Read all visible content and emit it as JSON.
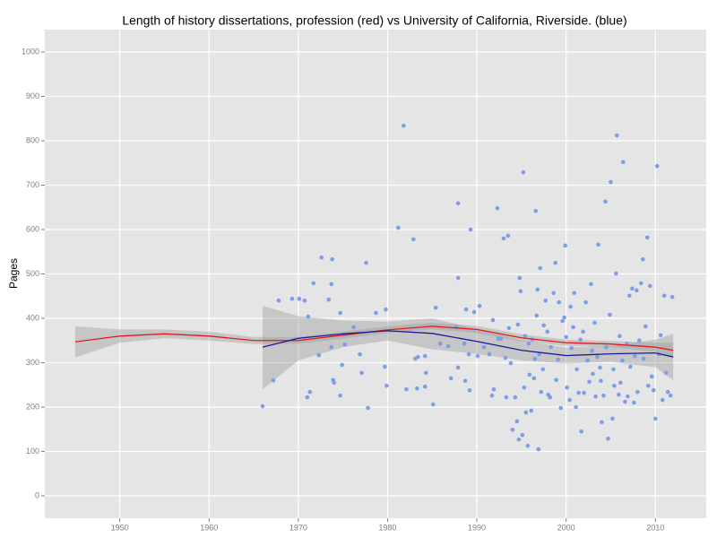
{
  "chart_data": {
    "type": "scatter",
    "title": "Length of history dissertations, profession (red) vs University of California, Riverside. (blue)",
    "ylabel": "Pages",
    "xlim": [
      1941.6,
      2015.7
    ],
    "ylim": [
      -50.5,
      1050.5
    ],
    "xticks": [
      1950,
      1960,
      1970,
      1980,
      1990,
      2000,
      2010
    ],
    "yticks": [
      0,
      100,
      200,
      300,
      400,
      500,
      600,
      700,
      800,
      900,
      1000
    ],
    "grid": true,
    "points": {
      "color": "#7c9ee6",
      "x": [
        1966.0,
        1967.2,
        1967.8,
        1969.3,
        1970.1,
        1970.7,
        1971.0,
        1971.3,
        1971.1,
        1971.7,
        1972.3,
        1972.6,
        1973.4,
        1973.8,
        1973.7,
        1973.9,
        1974.0,
        1973.7,
        1974.7,
        1974.7,
        1974.9,
        1975.2,
        1976.2,
        1976.9,
        1977.1,
        1977.6,
        1977.8,
        1978.7,
        1979.7,
        1979.8,
        1979.9,
        1981.2,
        1981.8,
        1982.1,
        1982.9,
        1983.1,
        1983.4,
        1983.3,
        1984.2,
        1984.2,
        1984.3,
        1985.1,
        1985.4,
        1985.9,
        1986.8,
        1987.1,
        1987.7,
        1987.9,
        1987.9,
        1987.9,
        1988.6,
        1988.7,
        1988.8,
        1989.1,
        1989.3,
        1989.2,
        1989.7,
        1990.1,
        1990.3,
        1990.8,
        1991.4,
        1991.7,
        1991.8,
        1991.9,
        1992.3,
        1992.4,
        1992.7,
        1993.0,
        1993.2,
        1993.5,
        1993.6,
        1993.3,
        1993.8,
        1994.0,
        1994.3,
        1994.5,
        1994.6,
        1994.7,
        1994.8,
        1994.9,
        1995.1,
        1995.2,
        1995.3,
        1995.4,
        1995.5,
        1995.7,
        1995.8,
        1995.9,
        1996.1,
        1996.2,
        1996.4,
        1996.5,
        1996.6,
        1996.7,
        1996.8,
        1996.9,
        1997.0,
        1997.1,
        1997.2,
        1997.4,
        1997.5,
        1997.7,
        1997.9,
        1998.0,
        1998.2,
        1998.3,
        1998.6,
        1998.8,
        1998.9,
        1999.1,
        1999.2,
        1999.4,
        1999.6,
        1999.8,
        1999.9,
        2000.0,
        2000.1,
        2000.4,
        2000.5,
        2000.6,
        2000.8,
        2000.9,
        2001.1,
        2001.2,
        2001.4,
        2001.6,
        2001.7,
        2001.9,
        2002.0,
        2002.2,
        2002.4,
        2002.6,
        2002.8,
        2002.9,
        2003.0,
        2003.2,
        2003.3,
        2003.5,
        2003.6,
        2003.8,
        2003.9,
        2004.0,
        2004.2,
        2004.4,
        2004.5,
        2004.7,
        2004.9,
        2005.0,
        2005.2,
        2005.3,
        2005.4,
        2005.6,
        2005.7,
        2005.9,
        2006.0,
        2006.1,
        2006.3,
        2006.4,
        2006.6,
        2006.8,
        2006.9,
        2007.1,
        2007.2,
        2007.4,
        2007.6,
        2007.7,
        2007.9,
        2008.0,
        2008.2,
        2008.4,
        2008.6,
        2008.7,
        2008.9,
        2009.1,
        2009.2,
        2009.4,
        2009.6,
        2009.8,
        2010.0,
        2010.2,
        2010.4,
        2010.6,
        2010.8,
        2011.0,
        2011.2,
        2011.4,
        2011.7,
        2011.9
      ],
      "y": [
        202,
        260,
        440,
        444,
        444,
        440,
        222,
        234,
        404,
        479,
        317,
        537,
        442,
        533,
        477,
        261,
        255,
        335,
        412,
        226,
        295,
        341,
        380,
        319,
        277,
        525,
        198,
        412,
        291,
        420,
        248,
        604,
        834,
        240,
        578,
        309,
        313,
        242,
        246,
        315,
        277,
        206,
        424,
        343,
        337,
        265,
        380,
        289,
        659,
        491,
        343,
        259,
        420,
        319,
        600,
        238,
        414,
        315,
        428,
        335,
        319,
        226,
        396,
        240,
        648,
        354,
        354,
        580,
        311,
        586,
        378,
        222,
        299,
        149,
        222,
        168,
        386,
        127,
        491,
        461,
        137,
        729,
        244,
        360,
        188,
        113,
        343,
        273,
        192,
        352,
        265,
        309,
        642,
        406,
        465,
        105,
        319,
        513,
        234,
        285,
        384,
        440,
        370,
        228,
        222,
        335,
        457,
        525,
        261,
        307,
        436,
        198,
        394,
        402,
        564,
        358,
        244,
        216,
        426,
        333,
        380,
        457,
        200,
        285,
        232,
        352,
        145,
        370,
        232,
        436,
        305,
        257,
        477,
        327,
        275,
        390,
        224,
        313,
        566,
        289,
        259,
        166,
        226,
        663,
        335,
        129,
        408,
        707,
        174,
        285,
        248,
        501,
        812,
        228,
        360,
        255,
        305,
        752,
        212,
        343,
        224,
        451,
        291,
        467,
        210,
        315,
        463,
        234,
        350,
        479,
        533,
        309,
        382,
        582,
        248,
        473,
        269,
        238,
        174,
        743,
        319,
        362,
        216,
        451,
        277,
        234,
        226,
        448
      ]
    },
    "smooths": [
      {
        "color": "#e31a1c",
        "x": [
          1945,
          1950,
          1955,
          1960,
          1965,
          1970,
          1975,
          1980,
          1985,
          1990,
          1995,
          2000,
          2005,
          2010,
          2012
        ],
        "values": [
          347,
          360,
          365,
          360,
          350,
          350,
          362,
          374,
          382,
          375,
          356,
          345,
          342,
          335,
          328
        ],
        "lower": [
          312,
          345,
          355,
          350,
          342,
          343,
          354,
          367,
          375,
          367,
          348,
          338,
          335,
          325,
          312
        ],
        "upper": [
          382,
          375,
          375,
          370,
          358,
          358,
          370,
          382,
          390,
          383,
          364,
          352,
          349,
          345,
          345
        ]
      },
      {
        "color": "#1a1a9c",
        "x": [
          1966,
          1970,
          1975,
          1980,
          1985,
          1990,
          1995,
          2000,
          2005,
          2010,
          2012
        ],
        "values": [
          335,
          355,
          365,
          372,
          366,
          348,
          328,
          316,
          320,
          322,
          313
        ],
        "lower": [
          240,
          305,
          335,
          350,
          330,
          320,
          305,
          298,
          302,
          290,
          260
        ],
        "upper": [
          428,
          405,
          395,
          393,
          400,
          376,
          350,
          334,
          338,
          352,
          365
        ]
      }
    ]
  }
}
